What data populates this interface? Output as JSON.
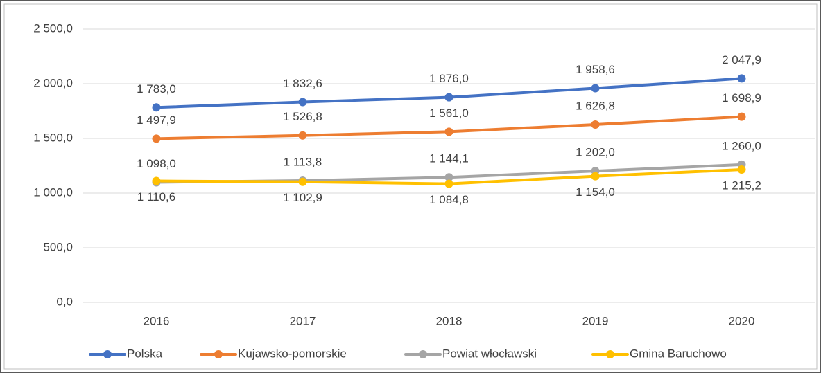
{
  "chart_data": {
    "type": "line",
    "categories": [
      "2016",
      "2017",
      "2018",
      "2019",
      "2020"
    ],
    "series": [
      {
        "name": "Polska",
        "color": "#4472c4",
        "values": [
          1783.0,
          1832.6,
          1876.0,
          1958.6,
          2047.9
        ],
        "value_labels": [
          "1 783,0",
          "1 832,6",
          "1 876,0",
          "1 958,6",
          "2 047,9"
        ]
      },
      {
        "name": "Kujawsko-pomorskie",
        "color": "#ed7d31",
        "values": [
          1497.9,
          1526.8,
          1561.0,
          1626.8,
          1698.9
        ],
        "value_labels": [
          "1 497,9",
          "1 526,8",
          "1 561,0",
          "1 626,8",
          "1 698,9"
        ]
      },
      {
        "name": "Powiat włocławski",
        "color": "#a5a5a5",
        "values": [
          1098.0,
          1113.8,
          1144.1,
          1202.0,
          1260.0
        ],
        "value_labels": [
          "1 098,0",
          "1 113,8",
          "1 144,1",
          "1 202,0",
          "1 260,0"
        ]
      },
      {
        "name": "Gmina Baruchowo",
        "color": "#ffc000",
        "values": [
          1110.6,
          1102.9,
          1084.8,
          1154.0,
          1215.2
        ],
        "value_labels": [
          "1 110,6",
          "1 102,9",
          "1 084,8",
          "1 154,0",
          "1 215,2"
        ]
      }
    ],
    "ylim": [
      0,
      2500
    ],
    "yticks": [
      {
        "value": 0,
        "label": "0,0"
      },
      {
        "value": 500,
        "label": "500,0"
      },
      {
        "value": 1000,
        "label": "1 000,0"
      },
      {
        "value": 1500,
        "label": "1 500,0"
      },
      {
        "value": 2000,
        "label": "2 000,0"
      },
      {
        "value": 2500,
        "label": "2 500,0"
      }
    ],
    "grid": true,
    "legend": "bottom"
  }
}
